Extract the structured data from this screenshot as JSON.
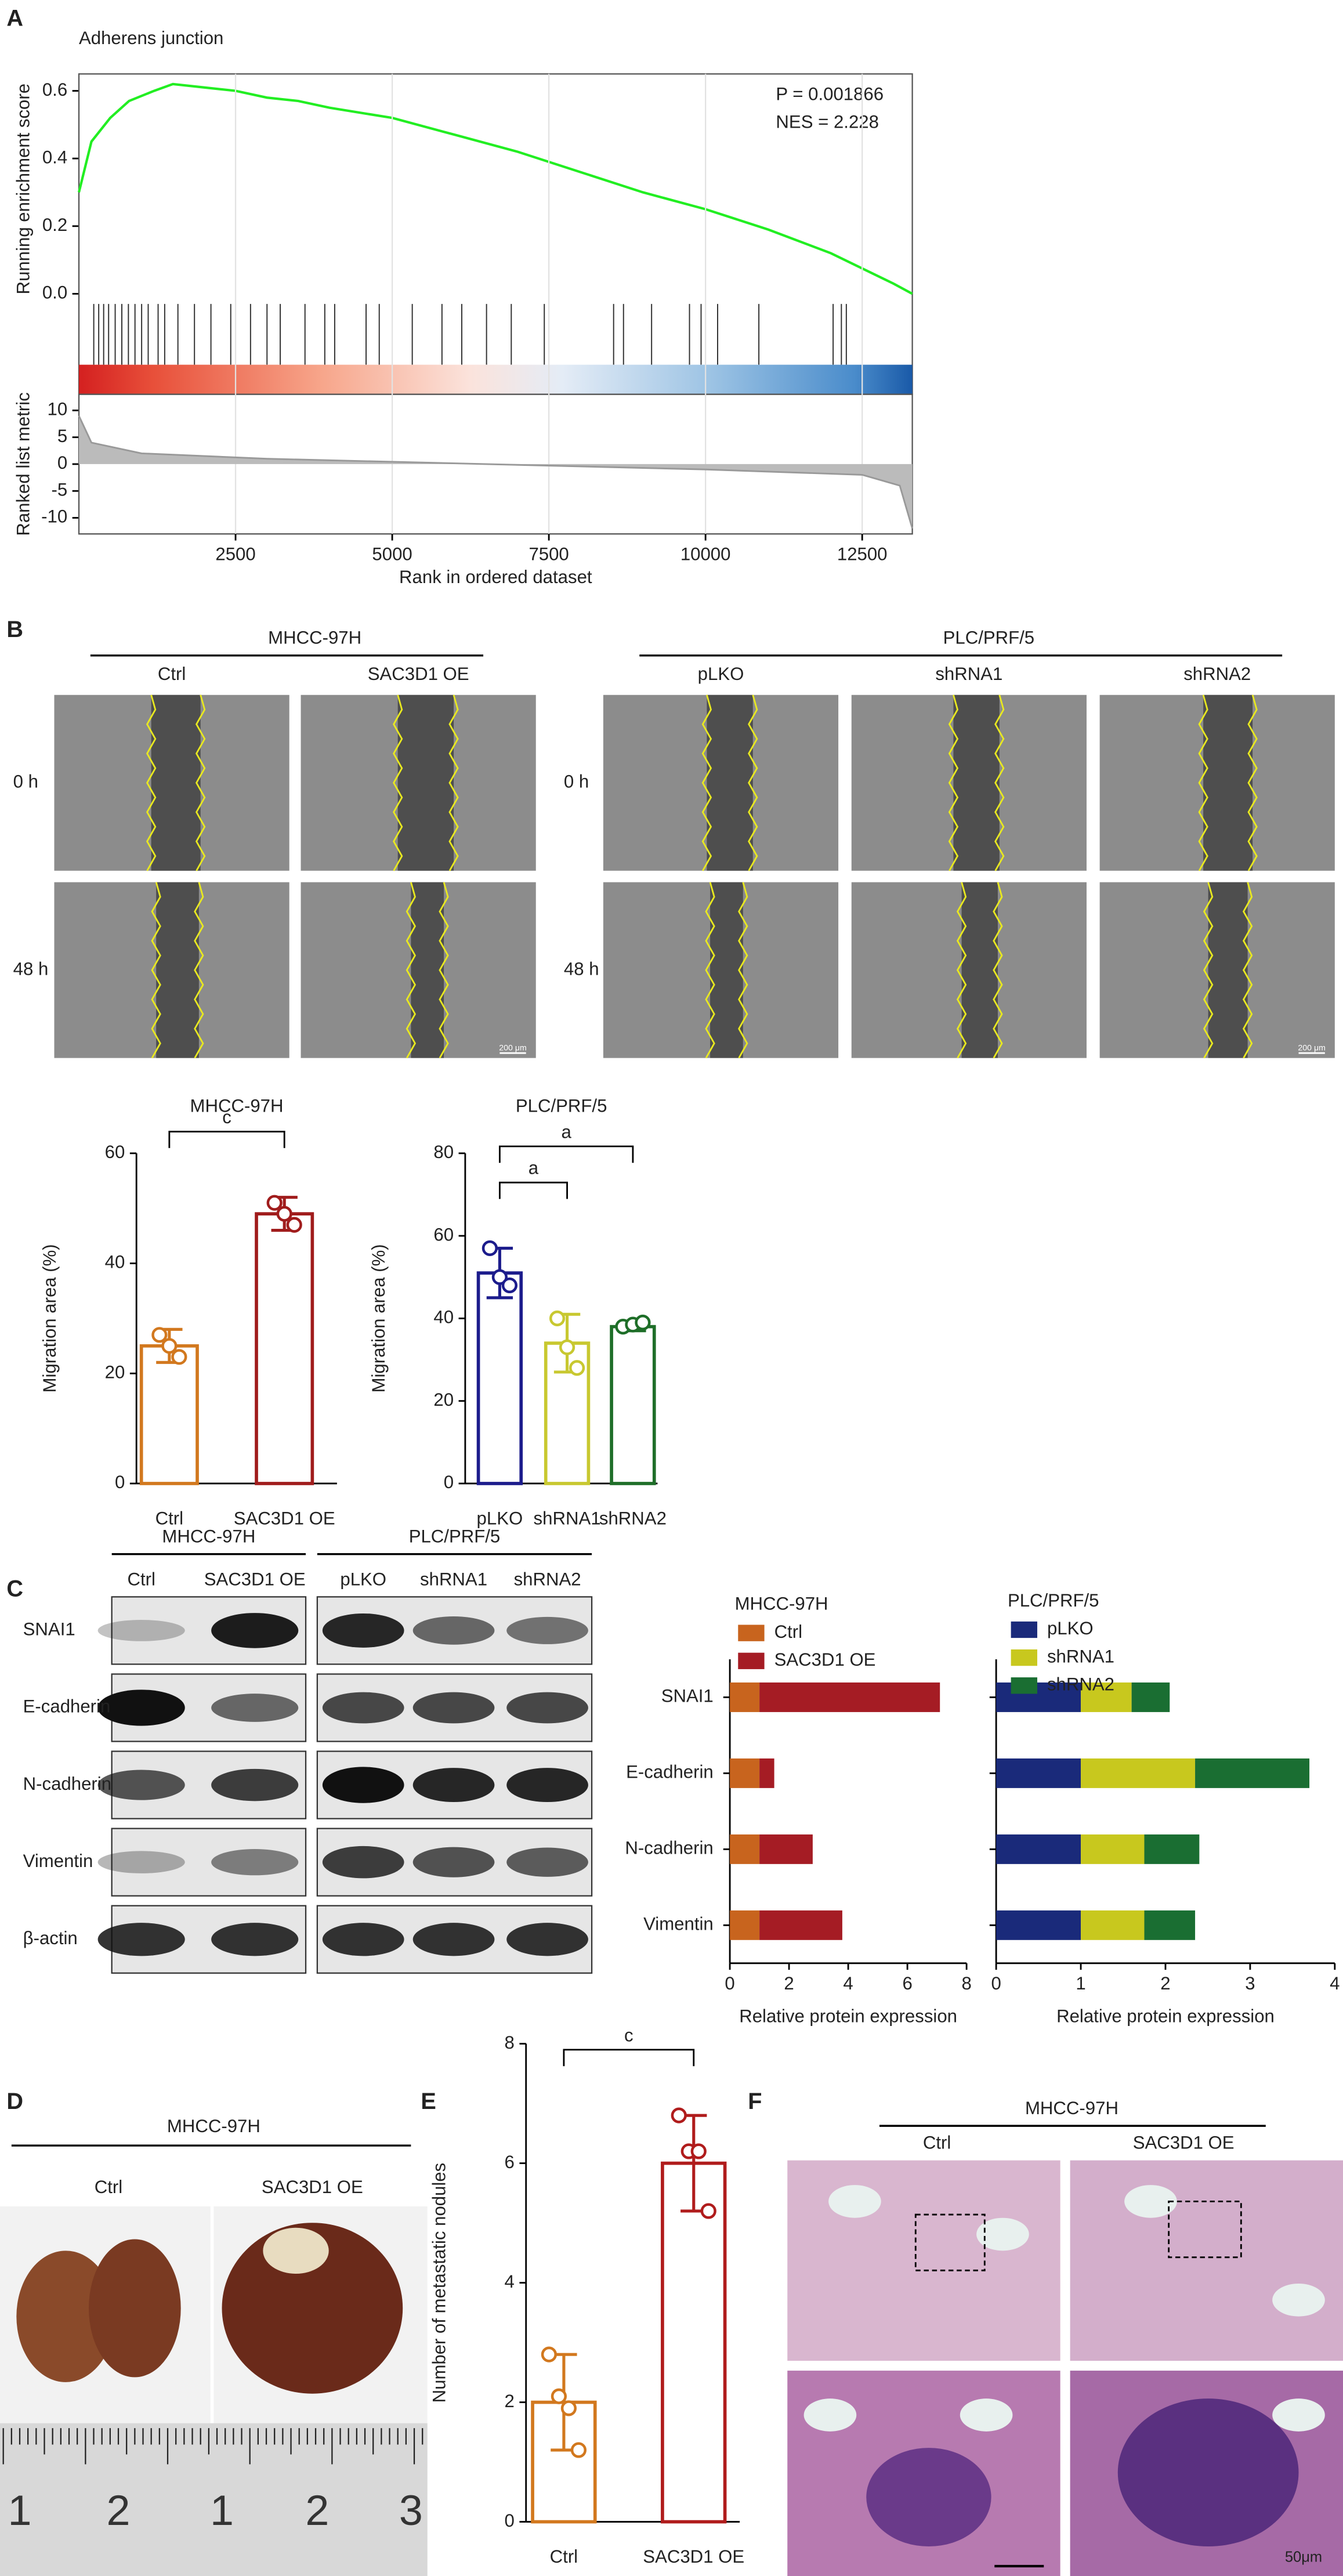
{
  "panel_labels": [
    "A",
    "B",
    "C",
    "D",
    "E",
    "F"
  ],
  "wound_healing": {
    "groups": [
      {
        "name": "MHCC-97H",
        "columns": [
          "Ctrl",
          "SAC3D1 OE"
        ]
      },
      {
        "name": "PLC/PRF/5",
        "columns": [
          "pLKO",
          "shRNA1",
          "shRNA2"
        ]
      }
    ],
    "rows": [
      "0 h",
      "48 h"
    ],
    "scale_bar": "200 μm"
  },
  "western_blot": {
    "groups": [
      {
        "name": "MHCC-97H",
        "columns": [
          "Ctrl",
          "SAC3D1 OE"
        ]
      },
      {
        "name": "PLC/PRF/5",
        "columns": [
          "pLKO",
          "shRNA1",
          "shRNA2"
        ]
      }
    ],
    "rows": [
      "SNAI1",
      "E-cadherin",
      "N-cadherin",
      "Vimentin",
      "β-actin"
    ]
  },
  "lung_photo": {
    "group": "MHCC-97H",
    "columns": [
      "Ctrl",
      "SAC3D1 OE"
    ],
    "ruler_labels": [
      "1",
      "2",
      "1",
      "2",
      "3"
    ]
  },
  "histology": {
    "group": "MHCC-97H",
    "columns": [
      "Ctrl",
      "SAC3D1 OE"
    ],
    "scale_bar": "50μm"
  },
  "chart_data": [
    {
      "type": "gsea",
      "title": "Adherens junction",
      "ylabel": "Running enrichment score",
      "annotations": [
        "P = 0.001866",
        "NES = 2.228"
      ],
      "x": [
        0,
        200,
        500,
        800,
        1200,
        1500,
        2000,
        2500,
        3000,
        3500,
        4000,
        5000,
        6000,
        7000,
        8000,
        9000,
        10000,
        11000,
        12000,
        13000,
        13300
      ],
      "values": [
        0.3,
        0.45,
        0.52,
        0.57,
        0.6,
        0.62,
        0.61,
        0.6,
        0.58,
        0.57,
        0.55,
        0.52,
        0.47,
        0.42,
        0.36,
        0.3,
        0.25,
        0.19,
        0.12,
        0.03,
        0.0
      ],
      "color": "#22ee22",
      "xlim": [
        0,
        13300
      ],
      "ylim": [
        -0.03,
        0.65
      ],
      "yticks": [
        {
          "value": 0,
          "label": "0.0"
        },
        0.2,
        0.4,
        0.6
      ],
      "hits": [
        237,
        316,
        395,
        474,
        579,
        685,
        790,
        895,
        1001,
        1106,
        1264,
        1369,
        1580,
        1844,
        2107,
        2423,
        2739,
        3002,
        3213,
        3608,
        3924,
        4082,
        4583,
        4793,
        5320,
        5794,
        6110,
        6505,
        6900,
        7427,
        8533,
        8691,
        9139,
        9744,
        9929,
        10193,
        10851,
        12036,
        12168,
        12247
      ]
    },
    {
      "type": "area",
      "ylabel": "Ranked list metric",
      "xlabel": "Rank in ordered dataset",
      "x": [
        0,
        200,
        1000,
        3000,
        6500,
        10000,
        12500,
        13100,
        13300
      ],
      "values": [
        9,
        4,
        2,
        1,
        0,
        -1,
        -2,
        -4,
        -12
      ],
      "color": "#bbbbbb",
      "xlim": [
        0,
        13300
      ],
      "ylim": [
        -13,
        13
      ],
      "yticks": [
        10,
        5,
        0,
        -5,
        -10
      ],
      "xticks": [
        2500,
        5000,
        7500,
        10000,
        12500
      ],
      "grid": true
    },
    {
      "type": "bar",
      "title": "MHCC-97H",
      "ylabel": "Migration area (%)",
      "categories": [
        "Ctrl",
        "SAC3D1 OE"
      ],
      "values": [
        25,
        49
      ],
      "errors": [
        3,
        3
      ],
      "points": [
        [
          27,
          25,
          23
        ],
        [
          51,
          49,
          47
        ]
      ],
      "colors": [
        "#d2781e",
        "#a01c1c"
      ],
      "ylim": [
        0,
        60
      ],
      "yticks": [
        0,
        20,
        40,
        60
      ],
      "significance": [
        "c"
      ]
    },
    {
      "type": "bar",
      "title": "PLC/PRF/5",
      "ylabel": "Migration area (%)",
      "categories": [
        "pLKO",
        "shRNA1",
        "shRNA2"
      ],
      "values": [
        51,
        34,
        38
      ],
      "errors": [
        6,
        7,
        1
      ],
      "points": [
        [
          57,
          50,
          48
        ],
        [
          40,
          33,
          28
        ],
        [
          38,
          38.5,
          39
        ]
      ],
      "colors": [
        "#1c1c8c",
        "#c8c830",
        "#1e6e28"
      ],
      "ylim": [
        0,
        80
      ],
      "yticks": [
        0,
        20,
        40,
        60,
        80
      ],
      "significance": [
        "a",
        "a"
      ]
    },
    {
      "type": "stacked-barh",
      "title": "MHCC-97H",
      "xlabel": "Relative protein expression",
      "categories": [
        "SNAI1",
        "E-cadherin",
        "N-cadherin",
        "Vimentin"
      ],
      "series": [
        {
          "name": "Ctrl",
          "color": "#c8641e",
          "values": [
            1,
            1,
            1,
            1
          ]
        },
        {
          "name": "SAC3D1 OE",
          "color": "#a51c24",
          "values": [
            6.1,
            0.5,
            1.8,
            2.8
          ]
        }
      ],
      "xlim": [
        0,
        8
      ],
      "xticks": [
        0,
        2,
        4,
        6,
        8
      ]
    },
    {
      "type": "stacked-barh",
      "title": "PLC/PRF/5",
      "xlabel": "Relative protein expression",
      "series": [
        {
          "name": "pLKO",
          "color": "#1a2a7a",
          "values": [
            1,
            1,
            1,
            1
          ]
        },
        {
          "name": "shRNA1",
          "color": "#c8c81e",
          "values": [
            0.6,
            1.35,
            0.75,
            0.75
          ]
        },
        {
          "name": "shRNA2",
          "color": "#1a6e32",
          "values": [
            0.45,
            1.35,
            0.65,
            0.6
          ]
        }
      ],
      "xlim": [
        0,
        4
      ],
      "xticks": [
        0,
        1,
        2,
        3,
        4
      ]
    },
    {
      "type": "bar",
      "ylabel": "Number of metastatic nodules",
      "categories": [
        "Ctrl",
        "SAC3D1 OE"
      ],
      "values": [
        2,
        6
      ],
      "errors": [
        0.8,
        0.8
      ],
      "points": [
        [
          2.8,
          2.1,
          1.9,
          1.2
        ],
        [
          6.8,
          6.2,
          6.2,
          5.2
        ]
      ],
      "colors": [
        "#d2781e",
        "#b01c1c"
      ],
      "ylim": [
        0,
        8
      ],
      "yticks": [
        0,
        2,
        4,
        6,
        8
      ],
      "significance": [
        "c"
      ]
    }
  ]
}
